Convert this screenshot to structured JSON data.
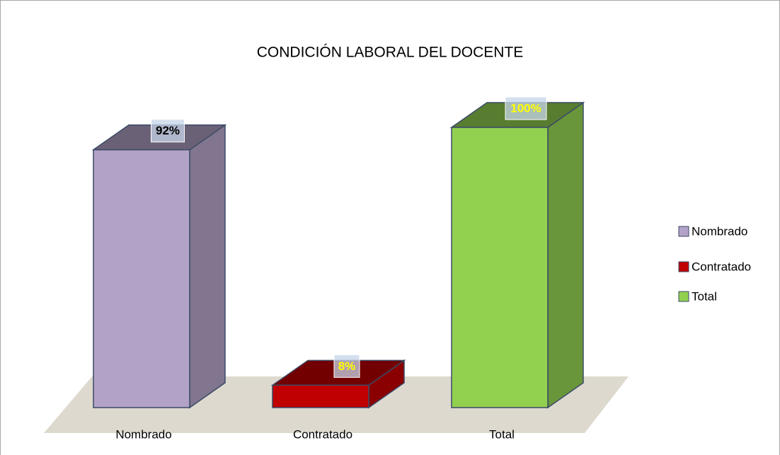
{
  "chart_data": {
    "type": "bar3d",
    "title": "CONDICIÓN LABORAL DEL DOCENTE",
    "categories": [
      "Nombrado",
      "Contratado",
      "Total"
    ],
    "values": [
      92,
      8,
      100
    ],
    "value_labels": [
      "92%",
      "8%",
      "100%"
    ],
    "colors": [
      "#b3a2c7",
      "#c00000",
      "#92d050"
    ],
    "value_label_colors": [
      "#000000",
      "#ffff00",
      "#ffff00"
    ],
    "legend": "right"
  }
}
